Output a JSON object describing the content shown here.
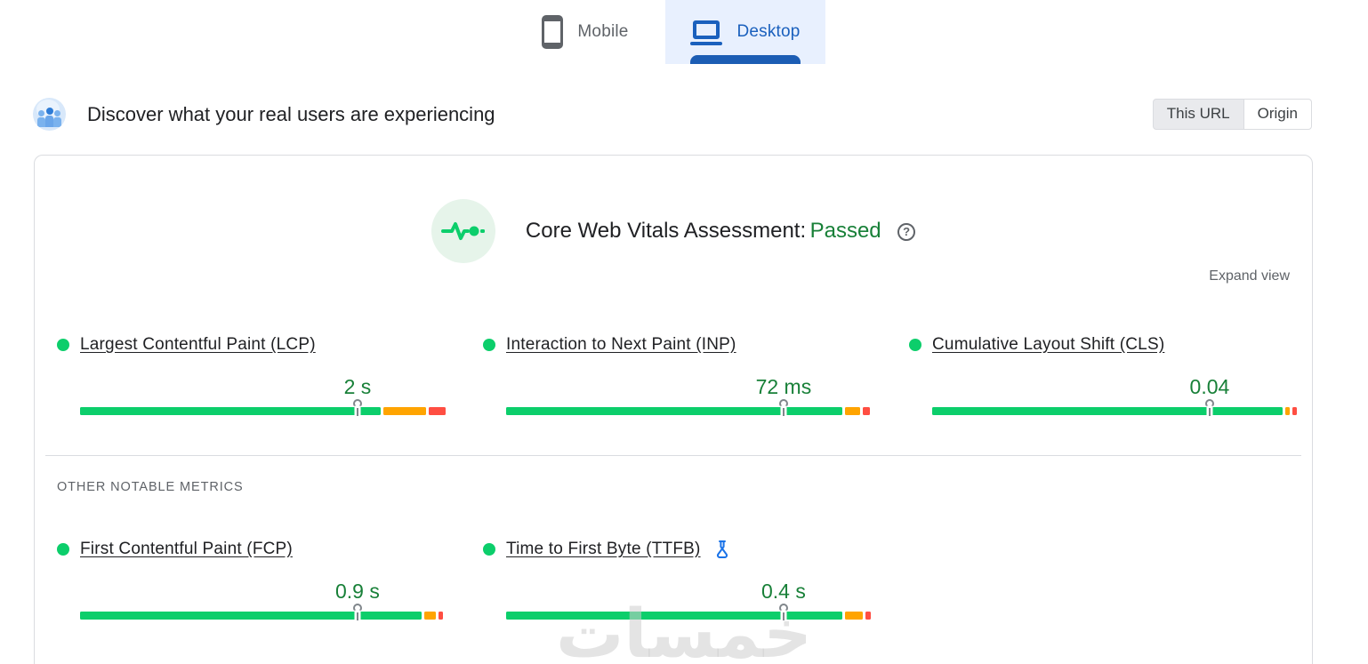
{
  "tabs": {
    "mobile": {
      "label": "Mobile"
    },
    "desktop": {
      "label": "Desktop",
      "selected": true
    }
  },
  "header": {
    "title": "Discover what your real users are experiencing",
    "scope_toggle": {
      "this_url_label": "This URL",
      "origin_label": "Origin",
      "selected": "This URL"
    }
  },
  "assessment": {
    "title": "Core Web Vitals Assessment:",
    "result": "Passed",
    "help_icon_glyph": "?",
    "expand_label": "Expand view"
  },
  "core_metrics": [
    {
      "name": "Largest Contentful Paint (LCP)",
      "value": "2 s",
      "status": "good",
      "marker_pct": 74.8,
      "distribution": {
        "good_pct": 81.5,
        "needs_improvement_pct": 12.0,
        "poor_pct": 5.0
      }
    },
    {
      "name": "Interaction to Next Paint (INP)",
      "value": "72 ms",
      "status": "good",
      "marker_pct": 74.8,
      "distribution": {
        "good_pct": 91.1,
        "needs_improvement_pct": 4.6,
        "poor_pct": 2.4
      }
    },
    {
      "name": "Cumulative Layout Shift (CLS)",
      "value": "0.04",
      "status": "good",
      "marker_pct": 74.8,
      "distribution": {
        "good_pct": 95.0,
        "needs_improvement_pct": 1.7,
        "poor_pct": 1.7
      }
    }
  ],
  "other_metrics_label": "OTHER NOTABLE METRICS",
  "other_metrics": [
    {
      "name": "First Contentful Paint (FCP)",
      "value": "0.9 s",
      "status": "good",
      "experimental": false,
      "marker_pct": 74.8,
      "distribution": {
        "good_pct": 92.6,
        "needs_improvement_pct": 3.6,
        "poor_pct": 1.7
      }
    },
    {
      "name": "Time to First Byte (TTFB)",
      "value": "0.4 s",
      "status": "good",
      "experimental": true,
      "marker_pct": 74.8,
      "distribution": {
        "good_pct": 91.1,
        "needs_improvement_pct": 5.3,
        "poor_pct": 1.9
      }
    }
  ],
  "watermark_text": "خمسات",
  "colors": {
    "good": "#0cce6b",
    "needs_improvement": "#ffa400",
    "poor": "#ff4e42",
    "passed_green": "#188038",
    "active_tab_blue": "#1a60bd",
    "tab_background": "#e8f0fe"
  }
}
